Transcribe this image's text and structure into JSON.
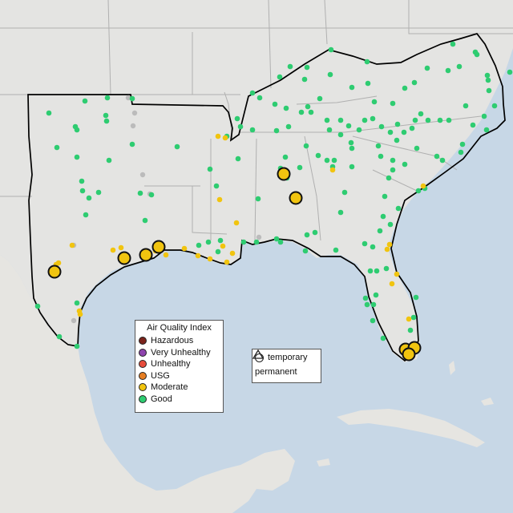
{
  "colors": {
    "water": "#c7d7e6",
    "land": "#e3e3e1",
    "land_outside": "#e6e5e1",
    "borders": "#aaaaaa",
    "region_outline": "#000000",
    "good": "#2ecc71",
    "moderate": "#f1c40f",
    "usg": "#e67e22",
    "unhealthy": "#e74c3c",
    "very_unhealthy": "#8e44ad",
    "hazardous": "#7b241c",
    "inactive": "#bbbbbb"
  },
  "legend": {
    "title": "Air Quality Index",
    "items": [
      {
        "label": "Hazardous",
        "color": "#7b241c"
      },
      {
        "label": "Very Unhealthy",
        "color": "#8e44ad"
      },
      {
        "label": "Unhealthy",
        "color": "#e74c3c"
      },
      {
        "label": "USG",
        "color": "#e67e22"
      },
      {
        "label": "Moderate",
        "color": "#f1c40f"
      },
      {
        "label": "Good",
        "color": "#2ecc71"
      }
    ]
  },
  "monitor_types": {
    "temporary": "temporary",
    "permanent": "permanent"
  }
}
